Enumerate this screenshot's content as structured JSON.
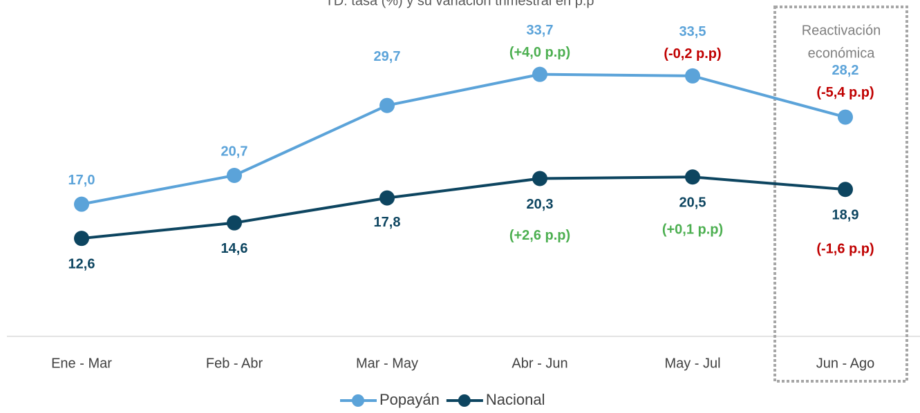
{
  "chart_data": {
    "type": "line",
    "title": "TD: tasa (%) y su variación trimestral en p.p",
    "categories": [
      "Ene - Mar",
      "Feb - Abr",
      "Mar - May",
      "Abr - Jun",
      "May - Jul",
      "Jun - Ago"
    ],
    "series": [
      {
        "name": "Popayán",
        "color": "#5ba3d9",
        "values": [
          17.0,
          20.7,
          29.7,
          33.7,
          33.5,
          28.2
        ],
        "value_labels": [
          "17,0",
          "20,7",
          "29,7",
          "33,7",
          "33,5",
          "28,2"
        ],
        "variations": [
          null,
          null,
          null,
          "(+4,0 p.p)",
          "(-0,2 p.p)",
          "(-5,4  p.p)"
        ]
      },
      {
        "name": "Nacional",
        "color": "#0d4560",
        "values": [
          12.6,
          14.6,
          17.8,
          20.3,
          20.5,
          18.9
        ],
        "value_labels": [
          "12,6",
          "14,6",
          "17,8",
          "20,3",
          "20,5",
          "18,9"
        ],
        "variations": [
          null,
          null,
          null,
          "(+2,6 p.p)",
          "(+0,1 p.p)",
          "(-1,6 p.p)"
        ]
      }
    ],
    "positive_color": "#4caf50",
    "negative_color": "#c00000",
    "highlight": {
      "category": "Jun - Ago",
      "lines": [
        "Reactivación",
        "económica"
      ]
    },
    "ylim": [
      0,
      43
    ]
  }
}
